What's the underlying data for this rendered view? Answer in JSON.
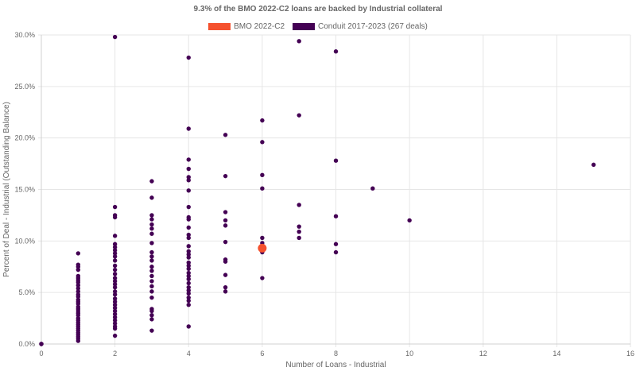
{
  "chart_data": {
    "type": "scatter",
    "title": "9.3% of the BMO 2022-C2 loans are backed by Industrial collateral",
    "xlabel": "Number of Loans - Industrial",
    "ylabel": "Percent of Deal - Industrial (Outstanding Balance)",
    "xlim": [
      0,
      16
    ],
    "ylim": [
      0,
      30
    ],
    "x_ticks": [
      "0",
      "2",
      "4",
      "6",
      "8",
      "10",
      "12",
      "14",
      "16"
    ],
    "y_ticks": [
      "0.0%",
      "5.0%",
      "10.0%",
      "15.0%",
      "20.0%",
      "25.0%",
      "30.0%"
    ],
    "grid": true,
    "legend_position": "top-center",
    "series": [
      {
        "name": "BMO 2022-C2",
        "color": "#f5512e",
        "points": [
          [
            6,
            9.3
          ]
        ]
      },
      {
        "name": "Conduit 2017-2023 (267 deals)",
        "color": "#440154",
        "points": [
          [
            0,
            0
          ],
          [
            0,
            0
          ],
          [
            0,
            0
          ],
          [
            1,
            8.8
          ],
          [
            1,
            7.7
          ],
          [
            1,
            7.5
          ],
          [
            1,
            7.2
          ],
          [
            1,
            6.6
          ],
          [
            1,
            6.4
          ],
          [
            1,
            6.2
          ],
          [
            1,
            6.0
          ],
          [
            1,
            5.7
          ],
          [
            1,
            5.4
          ],
          [
            1,
            5.1
          ],
          [
            1,
            4.8
          ],
          [
            1,
            4.6
          ],
          [
            1,
            4.3
          ],
          [
            1,
            4.1
          ],
          [
            1,
            3.9
          ],
          [
            1,
            3.6
          ],
          [
            1,
            3.4
          ],
          [
            1,
            3.2
          ],
          [
            1,
            3.0
          ],
          [
            1,
            2.8
          ],
          [
            1,
            2.5
          ],
          [
            1,
            2.3
          ],
          [
            1,
            2.1
          ],
          [
            1,
            1.9
          ],
          [
            1,
            1.7
          ],
          [
            1,
            1.5
          ],
          [
            1,
            1.3
          ],
          [
            1,
            1.1
          ],
          [
            1,
            0.9
          ],
          [
            1,
            0.7
          ],
          [
            1,
            0.5
          ],
          [
            1,
            0.3
          ],
          [
            2,
            29.8
          ],
          [
            2,
            13.3
          ],
          [
            2,
            12.5
          ],
          [
            2,
            12.3
          ],
          [
            2,
            10.5
          ],
          [
            2,
            9.7
          ],
          [
            2,
            9.4
          ],
          [
            2,
            9.1
          ],
          [
            2,
            8.8
          ],
          [
            2,
            8.5
          ],
          [
            2,
            8.1
          ],
          [
            2,
            7.6
          ],
          [
            2,
            7.2
          ],
          [
            2,
            6.8
          ],
          [
            2,
            6.4
          ],
          [
            2,
            6.1
          ],
          [
            2,
            5.8
          ],
          [
            2,
            5.5
          ],
          [
            2,
            5.1
          ],
          [
            2,
            4.8
          ],
          [
            2,
            4.4
          ],
          [
            2,
            4.1
          ],
          [
            2,
            3.8
          ],
          [
            2,
            3.5
          ],
          [
            2,
            3.2
          ],
          [
            2,
            2.9
          ],
          [
            2,
            2.6
          ],
          [
            2,
            2.3
          ],
          [
            2,
            2.0
          ],
          [
            2,
            1.7
          ],
          [
            2,
            1.5
          ],
          [
            2,
            0.8
          ],
          [
            3,
            15.8
          ],
          [
            3,
            14.2
          ],
          [
            3,
            12.5
          ],
          [
            3,
            12.1
          ],
          [
            3,
            11.6
          ],
          [
            3,
            11.2
          ],
          [
            3,
            10.7
          ],
          [
            3,
            9.8
          ],
          [
            3,
            8.9
          ],
          [
            3,
            8.5
          ],
          [
            3,
            8.1
          ],
          [
            3,
            7.5
          ],
          [
            3,
            7.1
          ],
          [
            3,
            6.6
          ],
          [
            3,
            6.1
          ],
          [
            3,
            5.6
          ],
          [
            3,
            5.1
          ],
          [
            3,
            4.5
          ],
          [
            3,
            3.4
          ],
          [
            3,
            3.2
          ],
          [
            3,
            2.8
          ],
          [
            3,
            2.4
          ],
          [
            3,
            1.3
          ],
          [
            4,
            27.8
          ],
          [
            4,
            20.9
          ],
          [
            4,
            17.9
          ],
          [
            4,
            17.0
          ],
          [
            4,
            16.2
          ],
          [
            4,
            15.9
          ],
          [
            4,
            14.9
          ],
          [
            4,
            13.3
          ],
          [
            4,
            12.3
          ],
          [
            4,
            12.1
          ],
          [
            4,
            11.3
          ],
          [
            4,
            10.6
          ],
          [
            4,
            10.3
          ],
          [
            4,
            9.5
          ],
          [
            4,
            9.0
          ],
          [
            4,
            8.7
          ],
          [
            4,
            8.4
          ],
          [
            4,
            7.9
          ],
          [
            4,
            7.6
          ],
          [
            4,
            7.3
          ],
          [
            4,
            6.9
          ],
          [
            4,
            6.6
          ],
          [
            4,
            6.3
          ],
          [
            4,
            5.9
          ],
          [
            4,
            5.5
          ],
          [
            4,
            5.2
          ],
          [
            4,
            4.9
          ],
          [
            4,
            4.5
          ],
          [
            4,
            4.2
          ],
          [
            4,
            3.8
          ],
          [
            4,
            1.7
          ],
          [
            5,
            20.3
          ],
          [
            5,
            16.3
          ],
          [
            5,
            12.8
          ],
          [
            5,
            12.0
          ],
          [
            5,
            11.5
          ],
          [
            5,
            9.9
          ],
          [
            5,
            8.2
          ],
          [
            5,
            8.0
          ],
          [
            5,
            6.7
          ],
          [
            5,
            5.5
          ],
          [
            5,
            5.1
          ],
          [
            6,
            21.7
          ],
          [
            6,
            19.6
          ],
          [
            6,
            16.4
          ],
          [
            6,
            15.1
          ],
          [
            6,
            10.3
          ],
          [
            6,
            9.8
          ],
          [
            6,
            8.9
          ],
          [
            6,
            6.4
          ],
          [
            7,
            29.4
          ],
          [
            7,
            22.2
          ],
          [
            7,
            13.5
          ],
          [
            7,
            11.4
          ],
          [
            7,
            10.9
          ],
          [
            7,
            10.3
          ],
          [
            8,
            28.4
          ],
          [
            8,
            17.8
          ],
          [
            8,
            12.4
          ],
          [
            8,
            9.7
          ],
          [
            8,
            8.9
          ],
          [
            9,
            15.1
          ],
          [
            10,
            12.0
          ],
          [
            15,
            17.4
          ]
        ]
      }
    ]
  }
}
